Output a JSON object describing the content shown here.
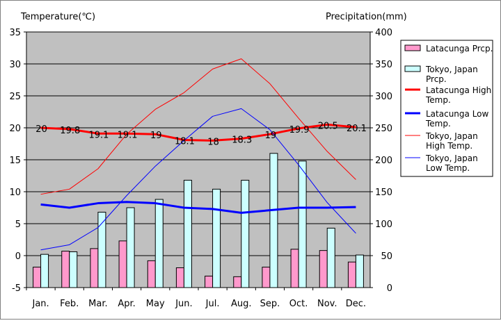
{
  "chart_data": {
    "type": "bar",
    "left_axis_title": "Temperature(℃)",
    "right_axis_title": "Precipitation(mm)",
    "categories": [
      "Jan.",
      "Feb.",
      "Mar.",
      "Apr.",
      "May",
      "Jun.",
      "Jul.",
      "Aug.",
      "Sep.",
      "Oct.",
      "Nov.",
      "Dec."
    ],
    "left_axis": {
      "min": -5,
      "max": 35,
      "step": 5,
      "ticks": [
        "-5",
        "0",
        "5",
        "10",
        "15",
        "20",
        "25",
        "30",
        "35"
      ]
    },
    "right_axis": {
      "min": 0,
      "max": 400,
      "step": 50,
      "ticks": [
        "0",
        "50",
        "100",
        "150",
        "200",
        "250",
        "300",
        "350",
        "400"
      ]
    },
    "grid": true,
    "plot_background": "#c0c0c0",
    "legend_position": "right",
    "bar_series": [
      {
        "name": "Latacunga Prcp.",
        "axis": "right",
        "color": "#ff99cc",
        "values": [
          32,
          57,
          61,
          73,
          42,
          31,
          18,
          17,
          32,
          60,
          58,
          40
        ]
      },
      {
        "name": "Tokyo, Japan Prcp.",
        "axis": "right",
        "color": "#ccffff",
        "values": [
          52,
          56,
          118,
          125,
          138,
          168,
          154,
          168,
          210,
          198,
          93,
          51
        ]
      }
    ],
    "line_series": [
      {
        "name": "Latacunga High Temp.",
        "axis": "left",
        "color": "#ff0000",
        "width": 3,
        "values": [
          20,
          19.8,
          19.1,
          19.1,
          19,
          18.1,
          18,
          18.3,
          19,
          19.9,
          20.5,
          20.1
        ],
        "labels": [
          "20",
          "19.8",
          "19.1",
          "19.1",
          "19",
          "18.1",
          "18",
          "18.3",
          "19",
          "19.9",
          "20.5",
          "20.1"
        ]
      },
      {
        "name": "Latacunga Low Temp.",
        "axis": "left",
        "color": "#0000ff",
        "width": 3,
        "values": [
          8,
          7.5,
          8.2,
          8.4,
          8.2,
          7.5,
          7.3,
          6.7,
          7.1,
          7.5,
          7.5,
          7.6
        ]
      },
      {
        "name": "Tokyo, Japan High Temp.",
        "axis": "left",
        "color": "#ff0000",
        "width": 1,
        "values": [
          9.6,
          10.4,
          13.6,
          19,
          22.9,
          25.5,
          29.2,
          30.8,
          26.9,
          21.5,
          16.3,
          11.9
        ]
      },
      {
        "name": "Tokyo, Japan Low Temp.",
        "axis": "left",
        "color": "#0000ff",
        "width": 1,
        "values": [
          0.9,
          1.7,
          4.4,
          9.4,
          14,
          18,
          21.8,
          23,
          19.7,
          14.2,
          8.3,
          3.5
        ]
      }
    ],
    "legend": [
      {
        "label": "Latacunga Prcp.",
        "kind": "bar",
        "color": "#ff99cc"
      },
      {
        "label": "Tokyo, Japan Prcp.",
        "kind": "bar",
        "color": "#ccffff"
      },
      {
        "label": "Latacunga High Temp.",
        "kind": "line",
        "color": "#ff0000",
        "width": 3
      },
      {
        "label": "Latacunga Low Temp.",
        "kind": "line",
        "color": "#0000ff",
        "width": 3
      },
      {
        "label": "Tokyo, Japan High Temp.",
        "kind": "line",
        "color": "#ff0000",
        "width": 1
      },
      {
        "label": "Tokyo, Japan Low Temp.",
        "kind": "line",
        "color": "#0000ff",
        "width": 1
      }
    ]
  }
}
